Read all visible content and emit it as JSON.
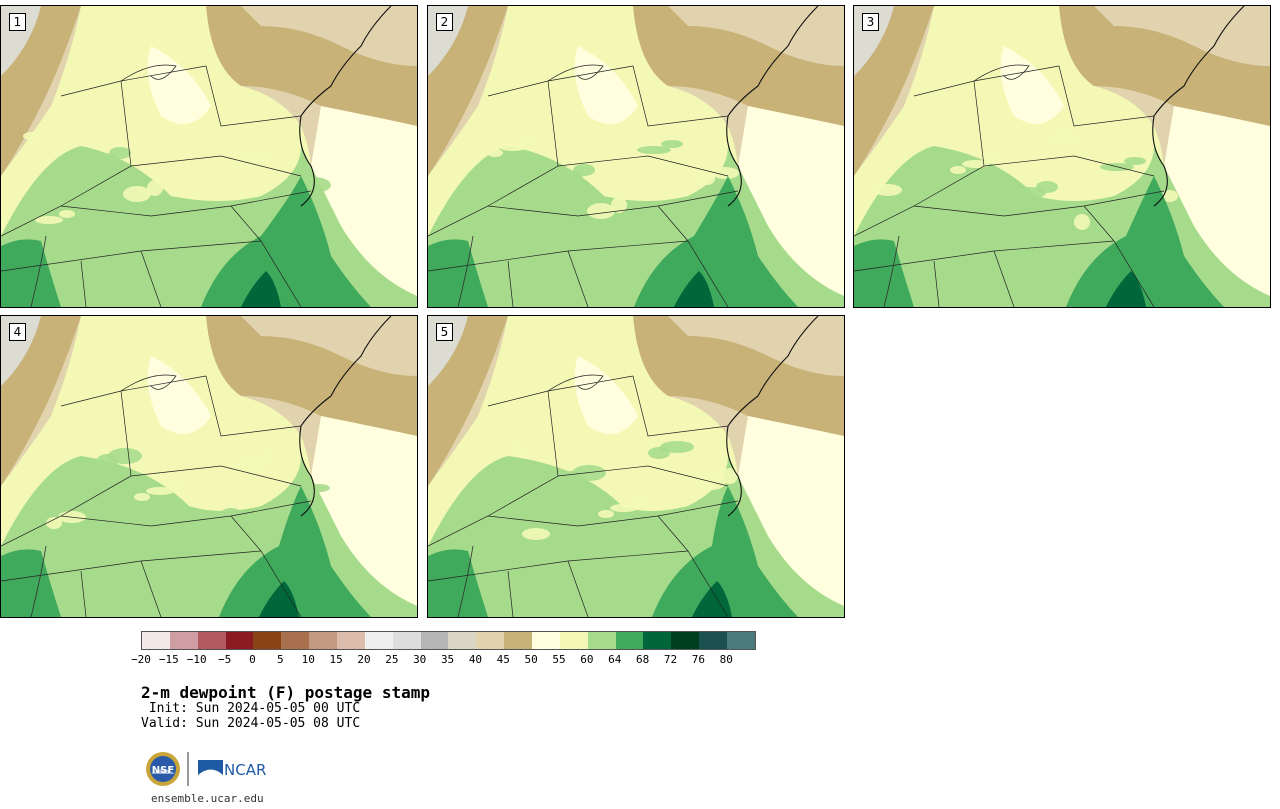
{
  "panels": [
    {
      "label": "1"
    },
    {
      "label": "2"
    },
    {
      "label": "3"
    },
    {
      "label": "4"
    },
    {
      "label": "5"
    }
  ],
  "colorbar": {
    "colors": [
      "#f3e9e8",
      "#d09ea2",
      "#b05a5f",
      "#8b1a22",
      "#8a4314",
      "#a8704d",
      "#c39a7f",
      "#dcbcaa",
      "#eeeeee",
      "#dddddd",
      "#b5b5b5",
      "#d9d6c6",
      "#e0d3ae",
      "#c8b278",
      "#ffffe0",
      "#f3f9b5",
      "#a7db8c",
      "#3fa95c",
      "#00673a",
      "#00401f",
      "#1b5050",
      "#4a7a7a"
    ],
    "tick_labels": [
      "−20",
      "−15",
      "−10",
      "−5",
      "0",
      "5",
      "10",
      "15",
      "20",
      "25",
      "30",
      "35",
      "40",
      "45",
      "50",
      "55",
      "60",
      "64",
      "68",
      "72",
      "76",
      "80"
    ]
  },
  "title": "2-m dewpoint (F) postage stamp",
  "init": " Init: Sun 2024-05-05 00 UTC",
  "valid": "Valid: Sun 2024-05-05 08 UTC",
  "logo": {
    "nsf": "NSF",
    "ncar": "NCAR"
  },
  "site": "ensemble.ucar.edu"
}
